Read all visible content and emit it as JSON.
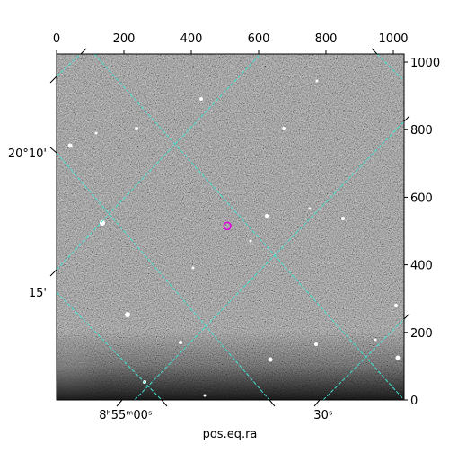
{
  "chart_data": {
    "type": "image",
    "xlabel": "pos.eq.ra",
    "xlim": [
      0,
      1032
    ],
    "ylim": [
      0,
      1024
    ],
    "xticks": [
      0,
      200,
      400,
      600,
      800,
      1000
    ],
    "yticks": [
      0,
      200,
      400,
      600,
      800,
      1000
    ],
    "world_x_labels": [
      "8ʰ55ᵐ00ˢ",
      "30ˢ"
    ],
    "world_y_labels": [
      "20°10'",
      "15'"
    ],
    "grid": true,
    "grid_color": "#40e0d0",
    "marker": {
      "x": 507,
      "y": 515,
      "color": "#e000e0"
    }
  }
}
